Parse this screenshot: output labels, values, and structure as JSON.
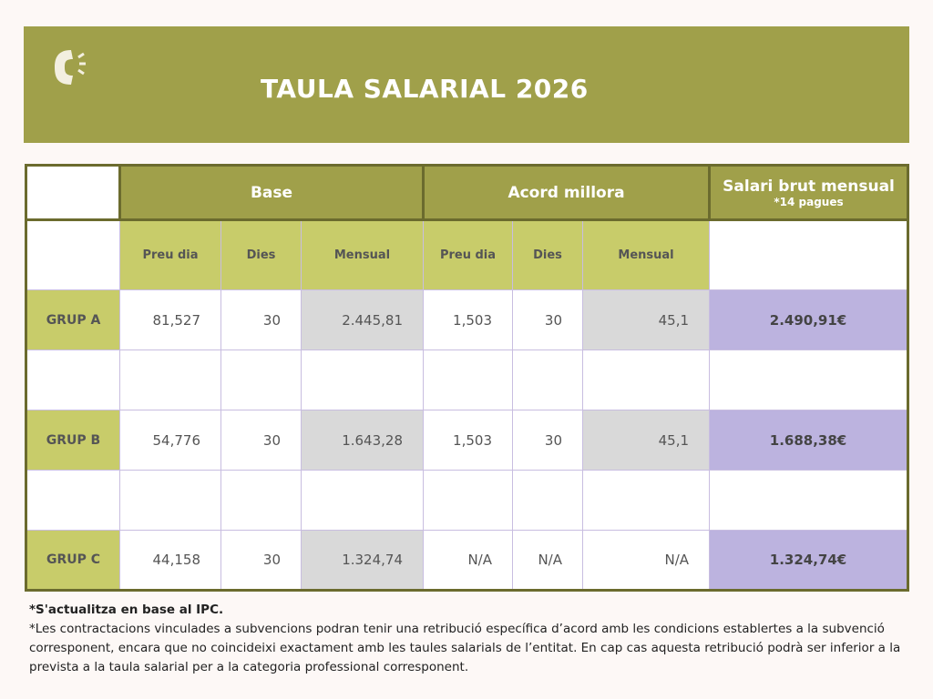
{
  "header": {
    "title": "TAULA SALARIAL 2026",
    "logo": "C"
  },
  "table": {
    "group_headers": {
      "base": "Base",
      "acord": "Acord millora",
      "salari": "Salari brut mensual",
      "salari_note": "*14 pagues"
    },
    "sub_headers": [
      "Preu dia",
      "Dies",
      "Mensual",
      "Preu dia",
      "Dies",
      "Mensual"
    ],
    "rows": [
      {
        "group": "GRUP A",
        "base_preu": "81,527",
        "base_dies": "30",
        "base_mensual": "2.445,81",
        "acord_preu": "1,503",
        "acord_dies": "30",
        "acord_mensual": "45,1",
        "total": "2.490,91€"
      },
      {
        "group": "GRUP B",
        "base_preu": "54,776",
        "base_dies": "30",
        "base_mensual": "1.643,28",
        "acord_preu": "1,503",
        "acord_dies": "30",
        "acord_mensual": "45,1",
        "total": "1.688,38€"
      },
      {
        "group": "GRUP C",
        "base_preu": "44,158",
        "base_dies": "30",
        "base_mensual": "1.324,74",
        "acord_preu": "N/A",
        "acord_dies": "N/A",
        "acord_mensual": "N/A",
        "total": "1.324,74€"
      }
    ]
  },
  "notes": {
    "note1": "*S'actualitza en base al IPC.",
    "note2": "*Les contractacions vinculades a subvencions podran tenir una retribució específica d’acord amb les condicions establertes a la subvenció corresponent, encara que no coincideixi exactament amb les taules salarials de l’entitat. En cap cas aquesta retribució podrà ser inferior a la prevista a la taula salarial per a la categoria professional corresponent."
  }
}
